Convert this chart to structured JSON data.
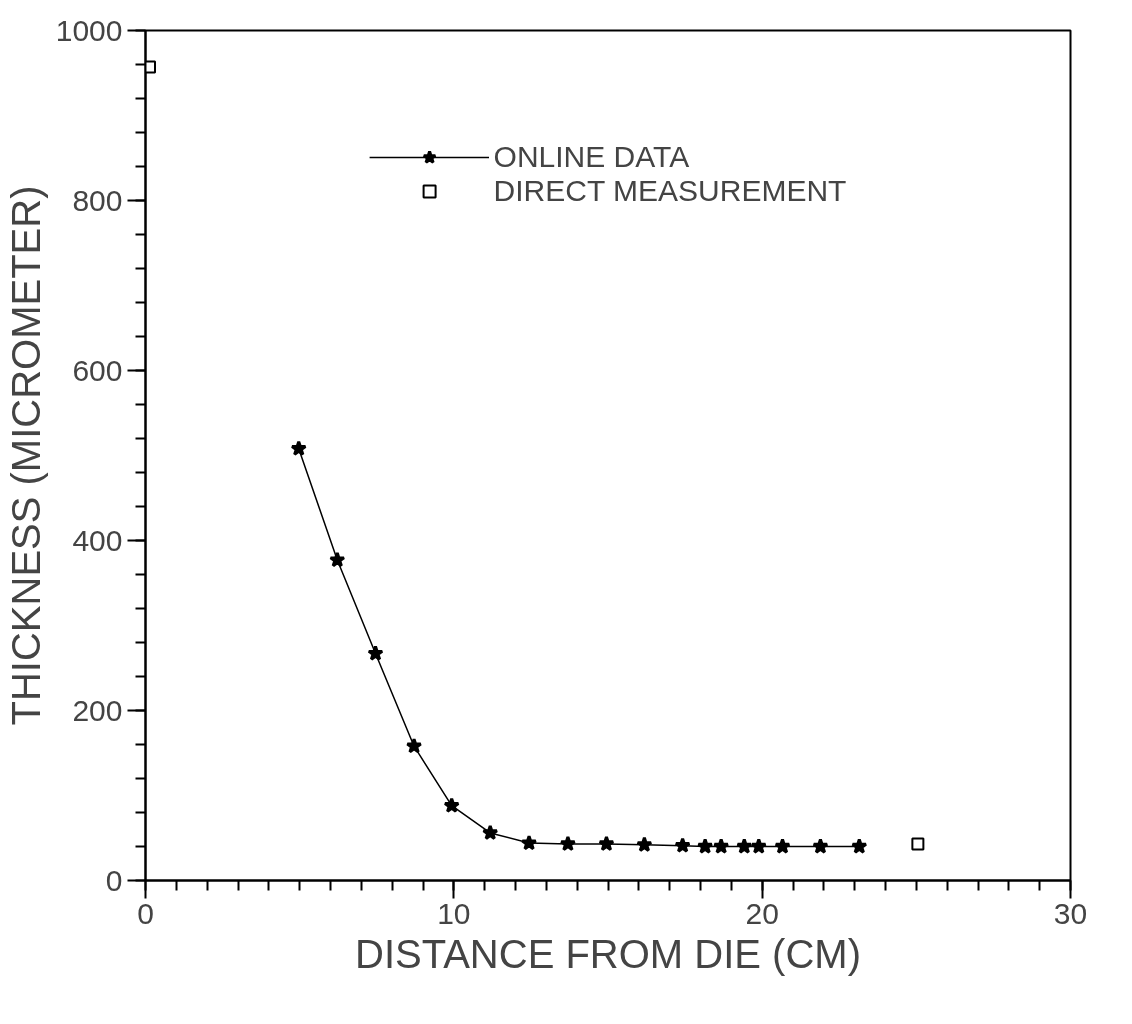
{
  "chart_data": {
    "type": "line",
    "xlabel": "DISTANCE FROM DIE (CM)",
    "ylabel": "THICKNESS (MICROMETER)",
    "xlim": [
      0,
      30
    ],
    "ylim": [
      0,
      1000
    ],
    "xticks": [
      0,
      10,
      20,
      30
    ],
    "yticks": [
      0,
      200,
      400,
      600,
      800,
      1000
    ],
    "grid": false,
    "legend": "top",
    "line_style": "solid",
    "series": [
      {
        "name": "ONLINE DATA",
        "marker": "star",
        "color": "#000000",
        "x": [
          4.97,
          6.22,
          7.46,
          8.71,
          9.93,
          11.18,
          12.44,
          13.7,
          14.95,
          16.18,
          17.42,
          18.15,
          18.67,
          19.42,
          19.89,
          20.66,
          21.89,
          23.15
        ],
        "values": [
          508,
          377,
          267,
          158,
          88,
          56,
          44,
          43,
          43,
          42,
          41,
          40,
          40,
          40,
          40,
          40,
          40,
          40
        ]
      },
      {
        "name": "DIRECT MEASUREMENT",
        "type": "scatter",
        "marker": "square",
        "color": "#000000",
        "x": [
          0.13,
          25.05
        ],
        "values": [
          957,
          43
        ]
      }
    ]
  }
}
